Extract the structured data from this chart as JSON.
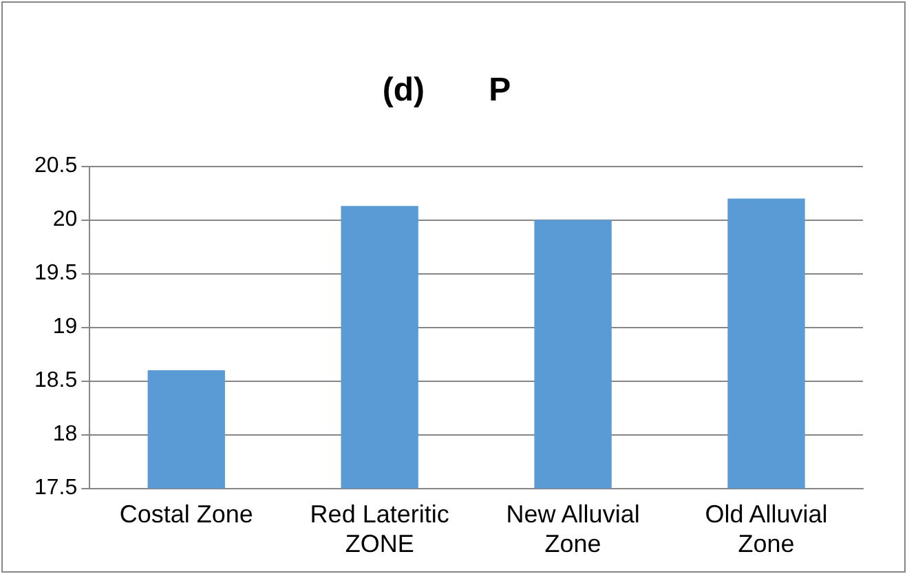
{
  "chart_data": {
    "type": "bar",
    "title": "(d)       P",
    "categories": [
      "Costal Zone",
      "Red Lateritic ZONE",
      "New Alluvial Zone",
      "Old Alluvial Zone"
    ],
    "values": [
      18.6,
      20.13,
      20.0,
      20.2
    ],
    "color": "#5b9bd5",
    "ylim": [
      17.5,
      20.5
    ],
    "yticks": [
      17.5,
      18,
      18.5,
      19,
      19.5,
      20,
      20.5
    ],
    "grid": "y",
    "legend": false
  }
}
